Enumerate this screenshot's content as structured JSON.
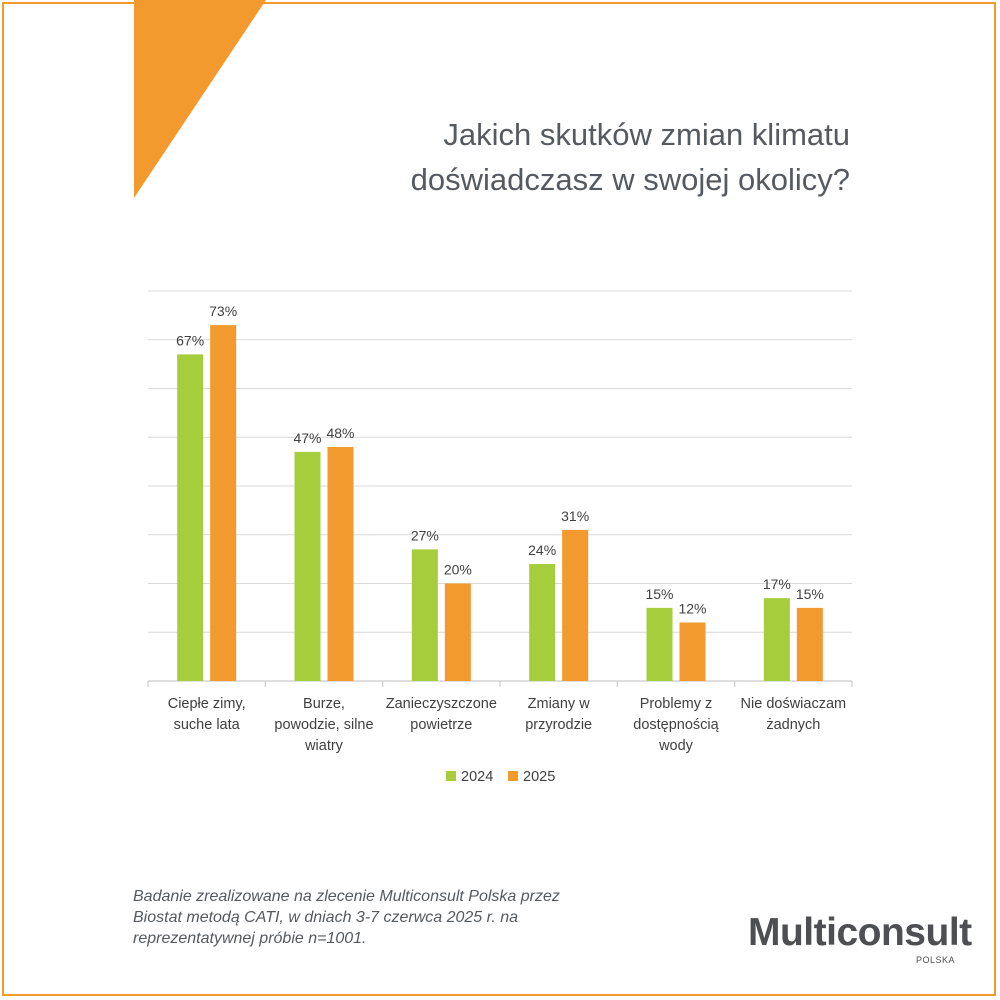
{
  "title_lines": [
    "Jakich skutków zmian klimatu",
    "doświadczasz w swojej okolicy?"
  ],
  "footnote_lines": [
    "Badanie zrealizowane na zlecenie Multiconsult Polska przez",
    "Biostat metodą CATI, w dniach 3-7 czerwca 2025 r. na",
    "reprezentatywnej próbie n=1001."
  ],
  "logo": {
    "name": "Multiconsult",
    "sub": "POLSKA"
  },
  "colors": {
    "accent": "#f29a2e",
    "series_2024": "#a6cd3c",
    "series_2025": "#f29a2e",
    "text": "#555a60",
    "grid": "#d9d9d9"
  },
  "chart_data": {
    "type": "bar",
    "title": "Jakich skutków zmian klimatu doświadczasz w swojej okolicy?",
    "categories": [
      [
        "Ciepłe zimy,",
        "suche lata"
      ],
      [
        "Burze,",
        "powodzie, silne",
        "wiatry"
      ],
      [
        "Zanieczyszczone",
        "powietrze"
      ],
      [
        "Zmiany w",
        "przyrodzie"
      ],
      [
        "Problemy z",
        "dostępnością",
        "wody"
      ],
      [
        "Nie doświaczam",
        "żadnych"
      ]
    ],
    "series": [
      {
        "name": "2024",
        "values": [
          67,
          47,
          27,
          24,
          15,
          17
        ],
        "labels": [
          "67%",
          "47%",
          "27%",
          "24%",
          "15%",
          "17%"
        ]
      },
      {
        "name": "2025",
        "values": [
          73,
          48,
          20,
          31,
          12,
          15
        ],
        "labels": [
          "73%",
          "48%",
          "20%",
          "31%",
          "12%",
          "15%"
        ]
      }
    ],
    "ylim": [
      0,
      80
    ],
    "grid": true,
    "legend": "bottom",
    "xlabel": "",
    "ylabel": ""
  }
}
